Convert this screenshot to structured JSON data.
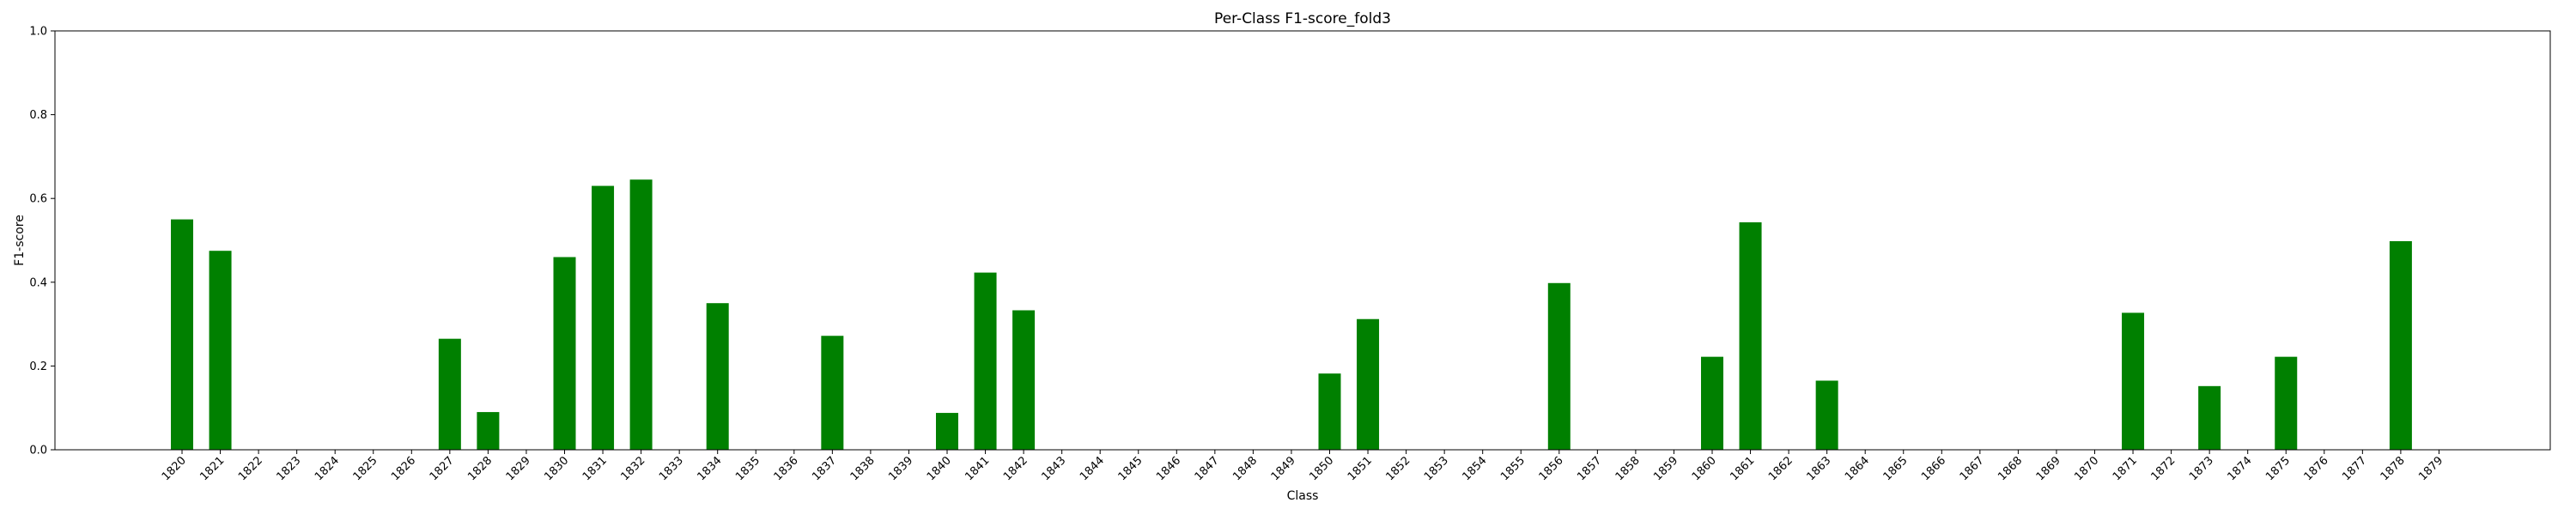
{
  "chart_data": {
    "type": "bar",
    "title": "Per-Class F1-score_fold3",
    "xlabel": "Class",
    "ylabel": "F1-score",
    "ylim": [
      0,
      1.0
    ],
    "yticks": [
      "0.0",
      "0.2",
      "0.4",
      "0.6",
      "0.8",
      "1.0"
    ],
    "grid": false,
    "bar_color": "#008000",
    "categories": [
      "1820",
      "1821",
      "1822",
      "1823",
      "1824",
      "1825",
      "1826",
      "1827",
      "1828",
      "1829",
      "1830",
      "1831",
      "1832",
      "1833",
      "1834",
      "1835",
      "1836",
      "1837",
      "1838",
      "1839",
      "1840",
      "1841",
      "1842",
      "1843",
      "1844",
      "1845",
      "1846",
      "1847",
      "1848",
      "1849",
      "1850",
      "1851",
      "1852",
      "1853",
      "1854",
      "1855",
      "1856",
      "1857",
      "1858",
      "1859",
      "1860",
      "1861",
      "1862",
      "1863",
      "1864",
      "1865",
      "1866",
      "1867",
      "1868",
      "1869",
      "1870",
      "1871",
      "1872",
      "1873",
      "1874",
      "1875",
      "1876",
      "1877",
      "1878",
      "1879"
    ],
    "values": [
      0.55,
      0.475,
      0,
      0,
      0,
      0,
      0,
      0.265,
      0.09,
      0,
      0.46,
      0.63,
      0.645,
      0,
      0.35,
      0,
      0,
      0.272,
      0,
      0,
      0.088,
      0.423,
      0.333,
      0,
      0,
      0,
      0,
      0,
      0,
      0,
      0.182,
      0.312,
      0,
      0,
      0,
      0,
      0.398,
      0,
      0,
      0,
      0.222,
      0.543,
      0,
      0.165,
      0,
      0,
      0,
      0,
      0,
      0,
      0,
      0.327,
      0,
      0.152,
      0,
      0.222,
      0,
      0,
      0.498,
      0
    ]
  }
}
